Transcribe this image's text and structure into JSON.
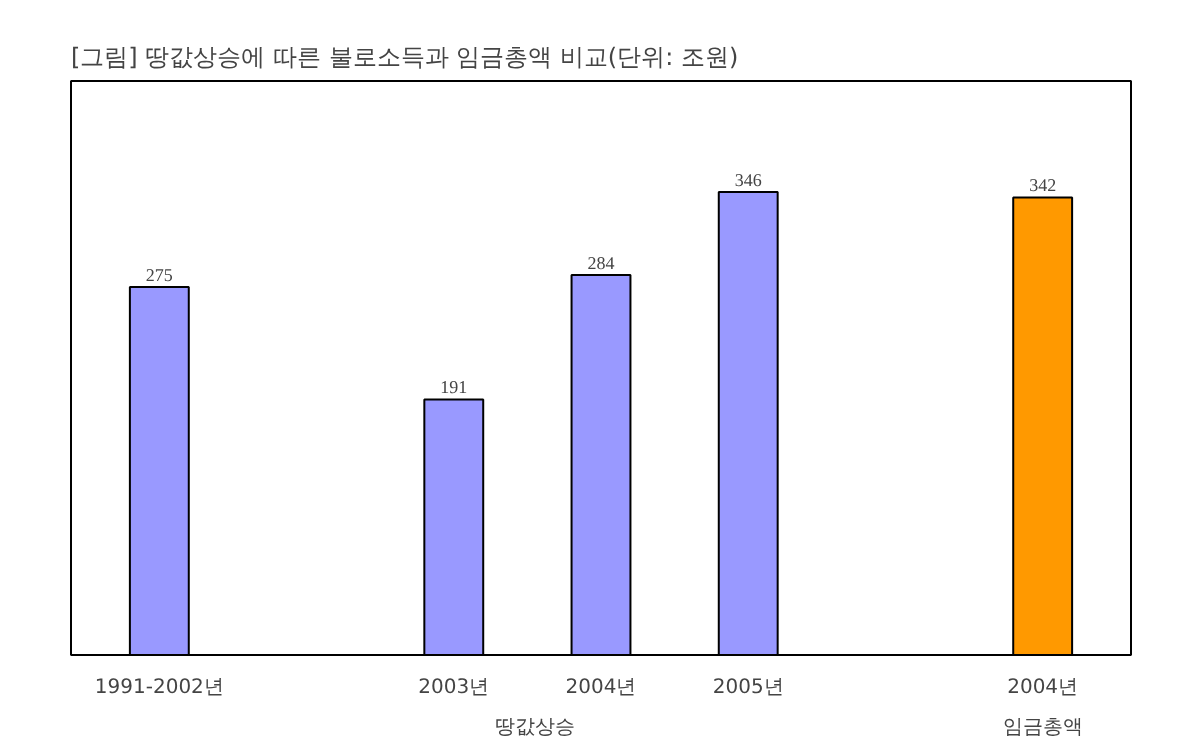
{
  "chart_data": {
    "type": "bar",
    "title": "[그림] 땅값상승에 따른 불로소득과 임금총액 비교(단위: 조원)",
    "categories": [
      "1991-2002년",
      null,
      "2003년",
      "2004년",
      "2005년",
      null,
      "2004년"
    ],
    "values": [
      275,
      null,
      191,
      284,
      346,
      null,
      342
    ],
    "colors": [
      "#9999ff",
      "#9999ff",
      "#9999ff",
      "#9999ff",
      "#9999ff",
      "#9999ff",
      "#ff9900"
    ],
    "data_labels": true,
    "grid": false,
    "annotations": [
      "땅값상승",
      "임금총액"
    ]
  }
}
